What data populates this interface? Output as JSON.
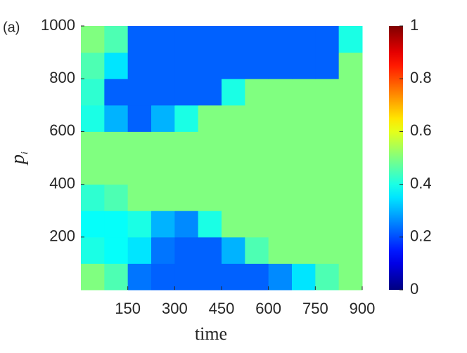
{
  "chart_data": {
    "type": "heatmap",
    "panel_label": "(a)",
    "xlabel": "time",
    "ylabel": "p",
    "ylabel_subscript": "i",
    "xlim": [
      0,
      900
    ],
    "ylim": [
      0,
      1000
    ],
    "xticks": [
      150,
      300,
      450,
      600,
      750,
      900
    ],
    "yticks": [
      200,
      400,
      600,
      800,
      1000
    ],
    "xbins": [
      0,
      75,
      150,
      225,
      300,
      375,
      450,
      525,
      600,
      675,
      750,
      825,
      900
    ],
    "ybins": [
      0,
      100,
      200,
      300,
      400,
      500,
      600,
      700,
      800,
      900,
      1000
    ],
    "colormap": "jet",
    "clim": [
      0,
      1
    ],
    "cticks": [
      0,
      0.2,
      0.4,
      0.6,
      0.8,
      1
    ],
    "z": [
      [
        0.5,
        0.45,
        0.24,
        0.22,
        0.22,
        0.22,
        0.22,
        0.22,
        0.26,
        0.35,
        0.45,
        0.5
      ],
      [
        0.4,
        0.38,
        0.35,
        0.24,
        0.22,
        0.22,
        0.3,
        0.45,
        0.5,
        0.5,
        0.5,
        0.5
      ],
      [
        0.38,
        0.38,
        0.4,
        0.3,
        0.26,
        0.4,
        0.5,
        0.5,
        0.5,
        0.5,
        0.5,
        0.5
      ],
      [
        0.42,
        0.45,
        0.5,
        0.5,
        0.5,
        0.5,
        0.5,
        0.5,
        0.5,
        0.5,
        0.5,
        0.5
      ],
      [
        0.5,
        0.5,
        0.5,
        0.5,
        0.5,
        0.5,
        0.5,
        0.5,
        0.5,
        0.5,
        0.5,
        0.5
      ],
      [
        0.5,
        0.5,
        0.5,
        0.5,
        0.5,
        0.5,
        0.5,
        0.5,
        0.5,
        0.5,
        0.5,
        0.5
      ],
      [
        0.4,
        0.3,
        0.22,
        0.3,
        0.4,
        0.5,
        0.5,
        0.5,
        0.5,
        0.5,
        0.5,
        0.5
      ],
      [
        0.42,
        0.22,
        0.22,
        0.22,
        0.22,
        0.22,
        0.4,
        0.5,
        0.5,
        0.5,
        0.5,
        0.5
      ],
      [
        0.45,
        0.35,
        0.22,
        0.22,
        0.22,
        0.22,
        0.22,
        0.22,
        0.22,
        0.22,
        0.22,
        0.5
      ],
      [
        0.5,
        0.45,
        0.22,
        0.22,
        0.22,
        0.22,
        0.22,
        0.22,
        0.22,
        0.22,
        0.22,
        0.4
      ]
    ]
  }
}
